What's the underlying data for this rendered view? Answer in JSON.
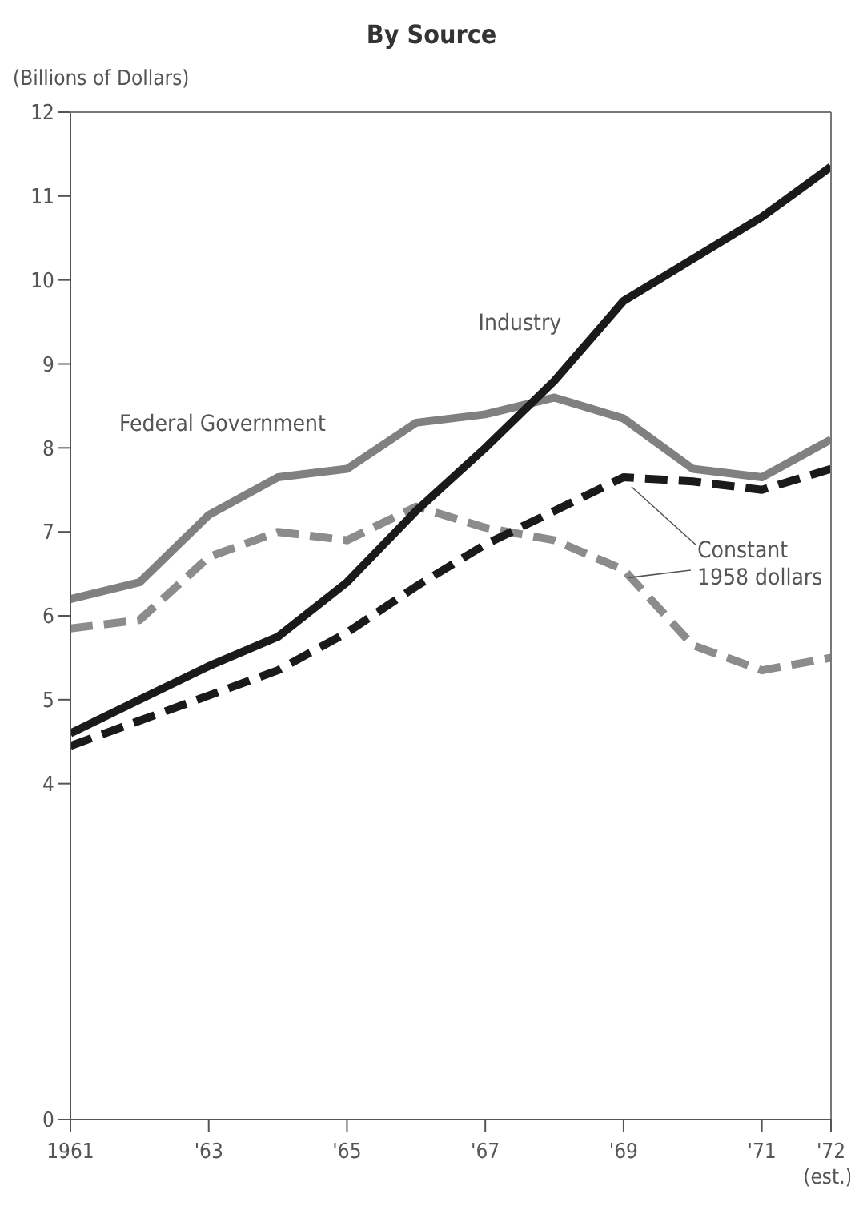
{
  "chart_data": {
    "type": "line",
    "title": "By Source",
    "ylabel": "(Billions of Dollars)",
    "x": [
      1961,
      1962,
      1963,
      1964,
      1965,
      1966,
      1967,
      1968,
      1969,
      1970,
      1971,
      1972
    ],
    "series": [
      {
        "name": "Federal Government",
        "color": "#808080",
        "line_style": "solid",
        "values": [
          6.2,
          6.4,
          7.2,
          7.65,
          7.75,
          8.3,
          8.4,
          8.6,
          8.35,
          7.75,
          7.65,
          8.1
        ]
      },
      {
        "color": "#8c8c8c",
        "line_style": "dashed",
        "values": [
          5.85,
          5.95,
          6.7,
          7.0,
          6.9,
          7.3,
          7.05,
          6.9,
          6.55,
          5.65,
          5.35,
          5.5
        ]
      },
      {
        "name": "Industry",
        "color": "#1a1a1a",
        "line_style": "solid",
        "values": [
          4.6,
          5.0,
          5.4,
          5.75,
          6.4,
          7.25,
          8.0,
          8.8,
          9.75,
          10.25,
          10.75,
          11.35
        ]
      },
      {
        "color": "#1a1a1a",
        "line_style": "dashed",
        "values": [
          4.45,
          4.75,
          5.05,
          5.35,
          5.8,
          6.35,
          6.85,
          7.25,
          7.65,
          7.6,
          7.5,
          7.75
        ]
      }
    ],
    "annotations": [
      {
        "text": "Constant 1958 dollars",
        "x": 1969,
        "y": 7.65
      },
      "(est.)"
    ],
    "xlim": [
      1961,
      1972
    ],
    "xticks": [
      {
        "value": 1961,
        "label": "1961"
      },
      {
        "value": 1963,
        "label": "'63"
      },
      {
        "value": 1965,
        "label": "'65"
      },
      {
        "value": 1967,
        "label": "'67"
      },
      {
        "value": 1969,
        "label": "'69"
      },
      {
        "value": 1971,
        "label": "'71"
      },
      {
        "value": 1972,
        "label": "'72"
      }
    ],
    "ylim": [
      0,
      12
    ],
    "yticks": [
      0,
      4,
      5,
      6,
      7,
      8,
      9,
      10,
      11,
      12
    ],
    "grid": false,
    "legend": false,
    "marker": "none"
  }
}
